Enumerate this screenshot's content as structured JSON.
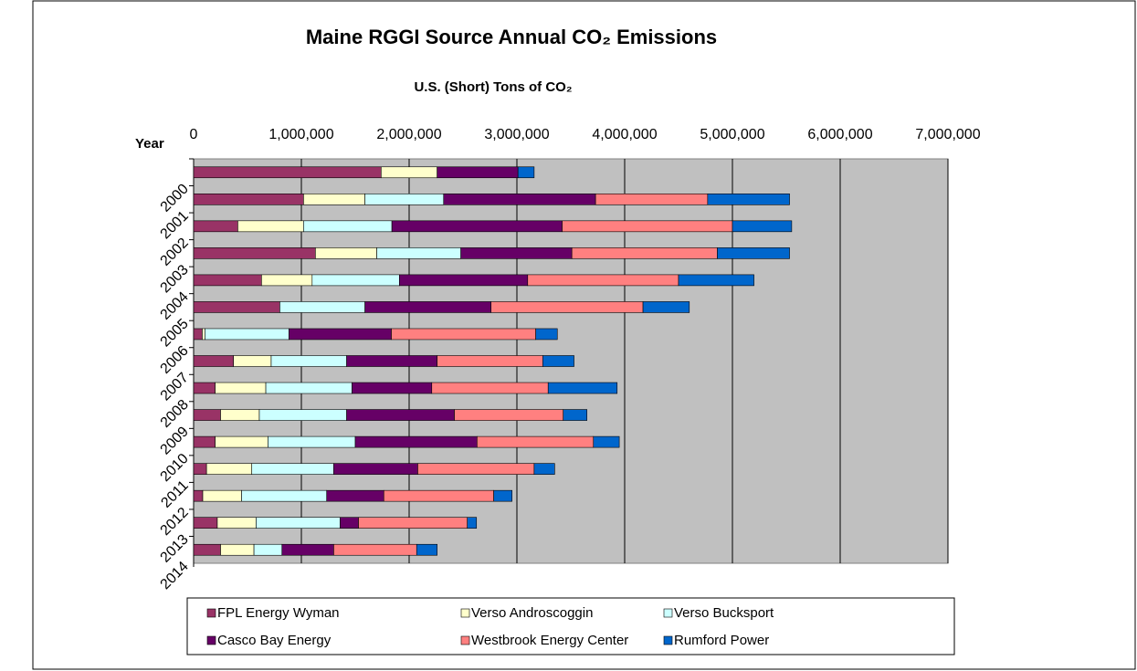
{
  "chart_data": {
    "type": "stacked-bar-horizontal",
    "title": "Maine RGGI Source Annual CO₂ Emissions",
    "x_label": "U.S. (Short) Tons of CO₂",
    "y_label": "Year",
    "categories": [
      "2000",
      "2001",
      "2002",
      "2003",
      "2004",
      "2005",
      "2006",
      "2007",
      "2008",
      "2009",
      "2010",
      "2011",
      "2012",
      "2013",
      "2014"
    ],
    "series": [
      {
        "name": "FPL Energy Wyman",
        "color": "#993366",
        "values": [
          1740000,
          1020000,
          410000,
          1130000,
          630000,
          800000,
          80000,
          370000,
          200000,
          250000,
          200000,
          120000,
          85000,
          220000,
          250000
        ]
      },
      {
        "name": "Verso Androscoggin",
        "color": "#ffffcc",
        "values": [
          520000,
          570000,
          610000,
          570000,
          470000,
          0,
          25000,
          350000,
          470000,
          360000,
          490000,
          420000,
          360000,
          360000,
          310000
        ]
      },
      {
        "name": "Verso Bucksport",
        "color": "#ccffff",
        "values": [
          0,
          730000,
          820000,
          780000,
          810000,
          790000,
          780000,
          700000,
          800000,
          810000,
          810000,
          760000,
          790000,
          780000,
          260000
        ]
      },
      {
        "name": "Casco Bay Energy",
        "color": "#660066",
        "values": [
          750000,
          1410000,
          1580000,
          1030000,
          1190000,
          1170000,
          950000,
          840000,
          740000,
          1000000,
          1130000,
          780000,
          530000,
          170000,
          480000
        ]
      },
      {
        "name": "Westbrook Energy Center",
        "color": "#ff8080",
        "values": [
          0,
          1040000,
          1580000,
          1350000,
          1400000,
          1410000,
          1340000,
          980000,
          1080000,
          1010000,
          1080000,
          1080000,
          1020000,
          1010000,
          770000
        ]
      },
      {
        "name": "Rumford Power",
        "color": "#0066cc",
        "values": [
          150000,
          760000,
          550000,
          670000,
          700000,
          430000,
          200000,
          290000,
          640000,
          220000,
          240000,
          190000,
          170000,
          85000,
          190000
        ]
      }
    ],
    "xlim": [
      0,
      7000000
    ],
    "xticks": [
      0,
      {
        "value": 1000000,
        "label": "1,000,000"
      },
      {
        "value": 2000000,
        "label": "2,000,000"
      },
      {
        "value": 3000000,
        "label": "3,000,000"
      },
      {
        "value": 4000000,
        "label": "4,000,000"
      },
      {
        "value": 5000000,
        "label": "5,000,000"
      },
      {
        "value": 6000000,
        "label": "6,000,000"
      },
      {
        "value": 7000000,
        "label": "7,000,000"
      }
    ],
    "grid": true,
    "legend": "bottom"
  }
}
